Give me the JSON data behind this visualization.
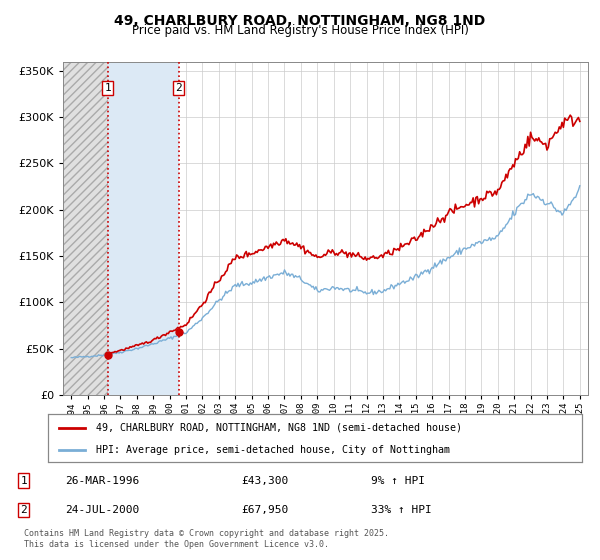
{
  "title": "49, CHARLBURY ROAD, NOTTINGHAM, NG8 1ND",
  "subtitle": "Price paid vs. HM Land Registry's House Price Index (HPI)",
  "legend_line1": "49, CHARLBURY ROAD, NOTTINGHAM, NG8 1ND (semi-detached house)",
  "legend_line2": "HPI: Average price, semi-detached house, City of Nottingham",
  "transaction1_date": "26-MAR-1996",
  "transaction1_price": "£43,300",
  "transaction1_hpi": "9% ↑ HPI",
  "transaction2_date": "24-JUL-2000",
  "transaction2_price": "£67,950",
  "transaction2_hpi": "33% ↑ HPI",
  "footnote": "Contains HM Land Registry data © Crown copyright and database right 2025.\nThis data is licensed under the Open Government Licence v3.0.",
  "price_color": "#cc0000",
  "hpi_color": "#7aaed6",
  "transaction1_x": 1996.23,
  "transaction2_x": 2000.56,
  "ylim": [
    0,
    360000
  ],
  "xlim": [
    1993.5,
    2025.5
  ],
  "background_color": "#f0f4fa"
}
